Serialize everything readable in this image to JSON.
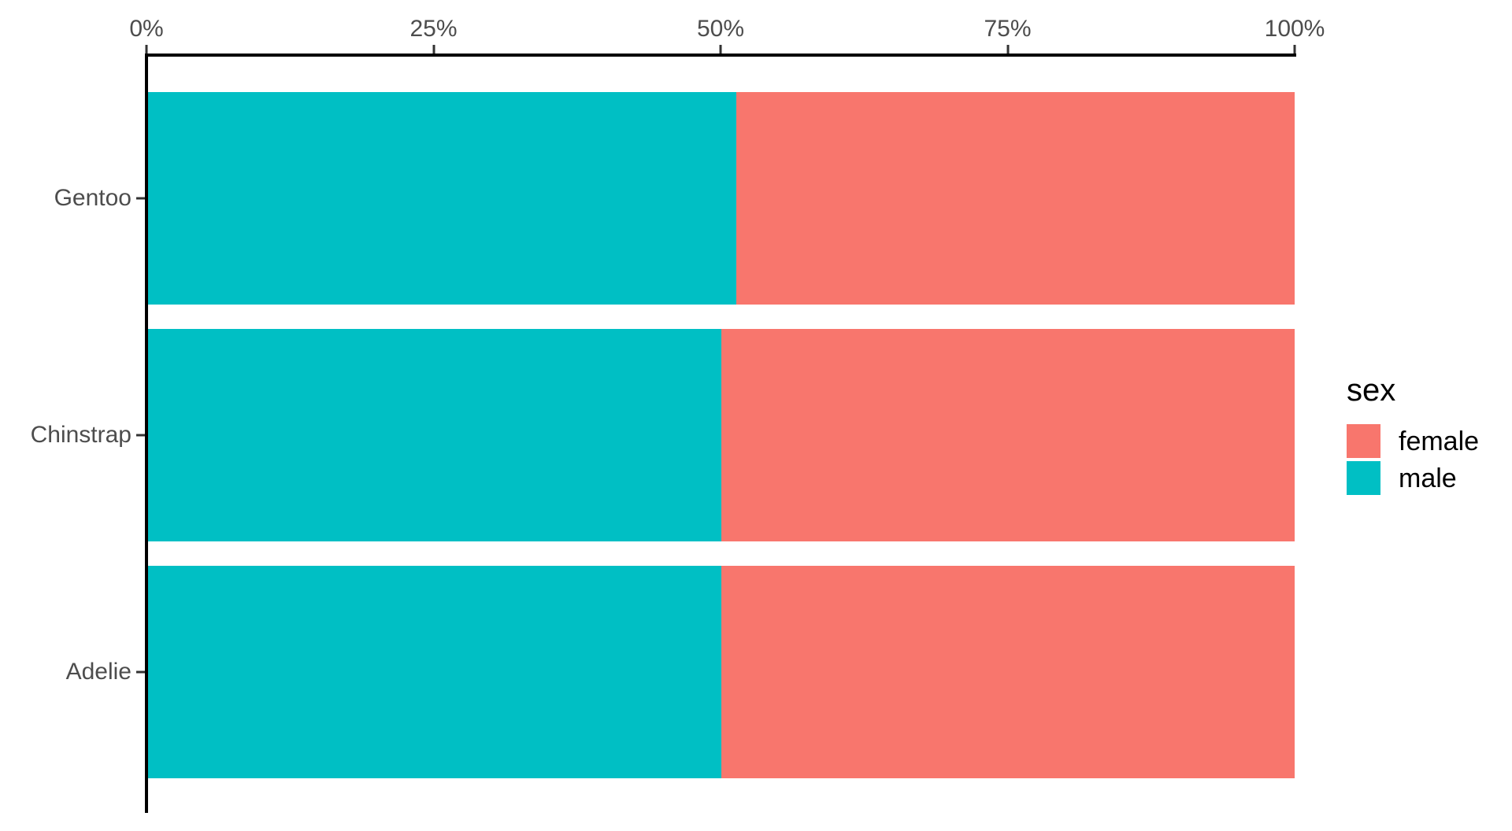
{
  "figure": {
    "background": "#FFFFFF",
    "legend": {
      "title": "sex",
      "position": "right",
      "entries": [
        {
          "label": "female",
          "color": "#F8766D"
        },
        {
          "label": "male",
          "color": "#00BFC4"
        }
      ]
    }
  },
  "chart_data": {
    "type": "bar",
    "orientation": "horizontal",
    "stack_mode": "fill",
    "title": "",
    "xlabel": "",
    "ylabel": "",
    "categories": [
      "Gentoo",
      "Chinstrap",
      "Adelie"
    ],
    "series": [
      {
        "name": "male",
        "color": "#00BFC4",
        "values_pct": [
          51.3,
          50.0,
          50.0
        ]
      },
      {
        "name": "female",
        "color": "#F8766D",
        "values_pct": [
          48.7,
          50.0,
          50.0
        ]
      }
    ],
    "segment_order_left_to_right": [
      "male",
      "female"
    ],
    "x_axis": {
      "position": "top",
      "tick_labels": [
        "0%",
        "25%",
        "50%",
        "75%",
        "100%"
      ],
      "range_pct": [
        0,
        100
      ],
      "grid": false
    },
    "y_axis": {
      "tick_labels": [
        "Gentoo",
        "Chinstrap",
        "Adelie"
      ]
    },
    "style_colors": {
      "axis_line": "#000000",
      "tick_mark": "#333333",
      "axis_text": "#4D4D4D",
      "legend_text": "#000000"
    }
  }
}
